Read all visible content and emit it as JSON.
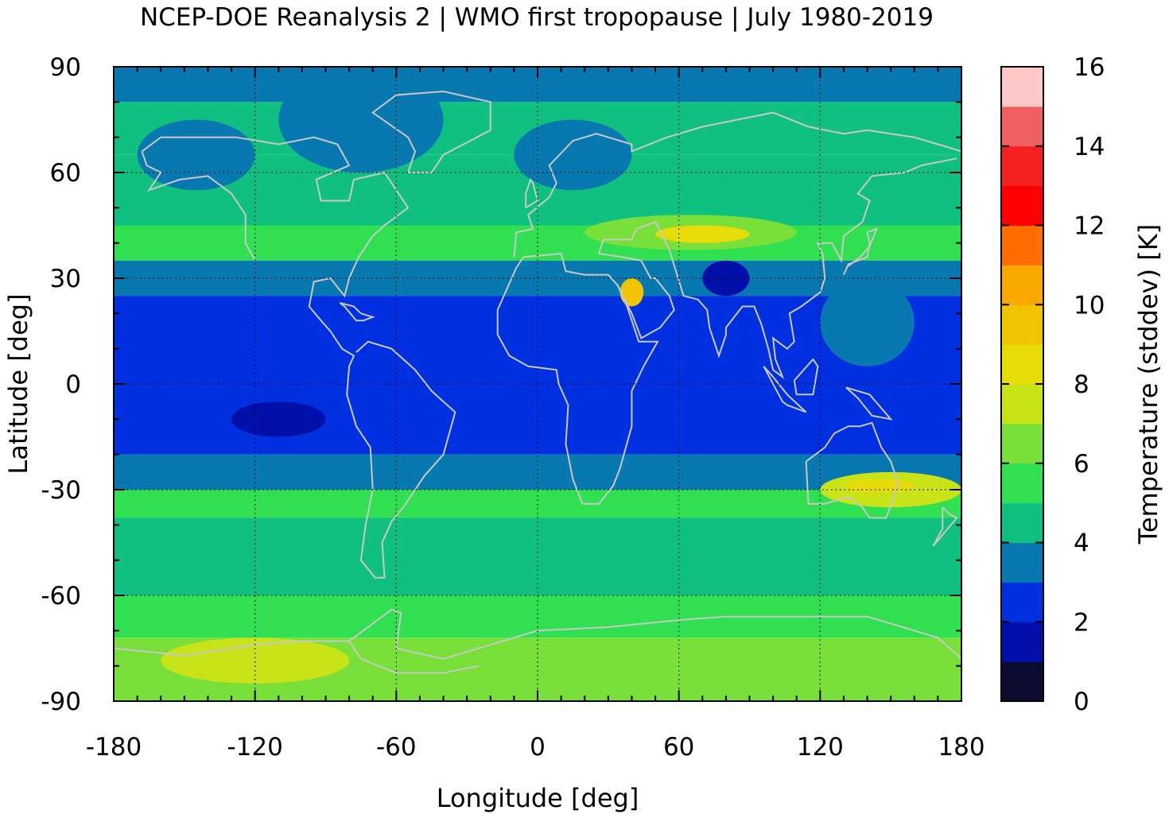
{
  "chart_data": {
    "type": "heatmap",
    "title": "NCEP-DOE Reanalysis 2 | WMO first tropopause | July 1980-2019",
    "xlabel": "Longitude [deg]",
    "ylabel": "Latitude [deg]",
    "colorbar_label": "Temperature (stddev) [K]",
    "xlim": [
      -180,
      180
    ],
    "ylim": [
      -90,
      90
    ],
    "x_ticks": [
      -180,
      -120,
      -60,
      0,
      60,
      120,
      180
    ],
    "y_ticks": [
      -90,
      -60,
      -30,
      0,
      30,
      60,
      90
    ],
    "x_tick_labels": [
      "-180",
      "-120",
      "-60",
      "0",
      "60",
      "120",
      "180"
    ],
    "y_tick_labels": [
      "-90",
      "-60",
      "-30",
      "0",
      "30",
      "60",
      "90"
    ],
    "colorbar_range": [
      0,
      16
    ],
    "colorbar_ticks": [
      "0",
      "2",
      "4",
      "6",
      "8",
      "10",
      "12",
      "14",
      "16"
    ],
    "colorbar_ticks_values": [
      0,
      2,
      4,
      6,
      8,
      10,
      12,
      14,
      16
    ],
    "grid": true,
    "coastlines": true,
    "colormap_bins": [
      {
        "from": 0,
        "to": 1,
        "color": "#0c0c30"
      },
      {
        "from": 1,
        "to": 2,
        "color": "#0010a8"
      },
      {
        "from": 2,
        "to": 3,
        "color": "#0030e0"
      },
      {
        "from": 3,
        "to": 4,
        "color": "#0878b0"
      },
      {
        "from": 4,
        "to": 5,
        "color": "#10c080"
      },
      {
        "from": 5,
        "to": 6,
        "color": "#30e050"
      },
      {
        "from": 6,
        "to": 7,
        "color": "#78e038"
      },
      {
        "from": 7,
        "to": 8,
        "color": "#c8e418"
      },
      {
        "from": 8,
        "to": 9,
        "color": "#e8dc08"
      },
      {
        "from": 9,
        "to": 10,
        "color": "#f0c400"
      },
      {
        "from": 10,
        "to": 11,
        "color": "#f8a800"
      },
      {
        "from": 11,
        "to": 12,
        "color": "#ff6c00"
      },
      {
        "from": 12,
        "to": 13,
        "color": "#ff0000"
      },
      {
        "from": 13,
        "to": 14,
        "color": "#f42020"
      },
      {
        "from": 14,
        "to": 15,
        "color": "#f06060"
      },
      {
        "from": 15,
        "to": 16,
        "color": "#ffc8c8"
      }
    ],
    "field_approx": {
      "description_grid": "latitude bands x longitude, values in K (stddev)",
      "lat_bands": [
        {
          "lat": [
            80,
            90
          ],
          "value": 3.5
        },
        {
          "lat": [
            65,
            80
          ],
          "value": 4.5
        },
        {
          "lat": [
            45,
            65
          ],
          "value": 4.5
        },
        {
          "lat": [
            35,
            45
          ],
          "value": 5.5
        },
        {
          "lat": [
            25,
            35
          ],
          "value": 3.5
        },
        {
          "lat": [
            -20,
            25
          ],
          "value": 2.5
        },
        {
          "lat": [
            -30,
            -20
          ],
          "value": 3.5
        },
        {
          "lat": [
            -38,
            -30
          ],
          "value": 5.5
        },
        {
          "lat": [
            -60,
            -38
          ],
          "value": 4.5
        },
        {
          "lat": [
            -72,
            -60
          ],
          "value": 5.5
        },
        {
          "lat": [
            -90,
            -72
          ],
          "value": 6.5
        }
      ],
      "features": [
        {
          "lon": [
            -170,
            -120
          ],
          "lat": [
            55,
            75
          ],
          "value": 3.5
        },
        {
          "lon": [
            -110,
            -40
          ],
          "lat": [
            60,
            90
          ],
          "value": 3.5
        },
        {
          "lon": [
            -10,
            40
          ],
          "lat": [
            55,
            75
          ],
          "value": 3.5
        },
        {
          "lon": [
            20,
            110
          ],
          "lat": [
            38,
            48
          ],
          "value": 6.5
        },
        {
          "lon": [
            50,
            90
          ],
          "lat": [
            40,
            45
          ],
          "value": 8.5
        },
        {
          "lon": [
            35,
            45
          ],
          "lat": [
            22,
            30
          ],
          "value": 9.0
        },
        {
          "lon": [
            70,
            90
          ],
          "lat": [
            25,
            35
          ],
          "value": 1.5
        },
        {
          "lon": [
            -130,
            -90
          ],
          "lat": [
            -15,
            -5
          ],
          "value": 1.5
        },
        {
          "lon": [
            120,
            180
          ],
          "lat": [
            -35,
            -25
          ],
          "value": 7.5
        },
        {
          "lon": [
            130,
            160
          ],
          "lat": [
            -31,
            -27
          ],
          "value": 8.5
        },
        {
          "lon": [
            120,
            160
          ],
          "lat": [
            5,
            30
          ],
          "value": 3.5
        },
        {
          "lon": [
            -160,
            -80
          ],
          "lat": [
            -85,
            -72
          ],
          "value": 7.5
        }
      ]
    }
  }
}
